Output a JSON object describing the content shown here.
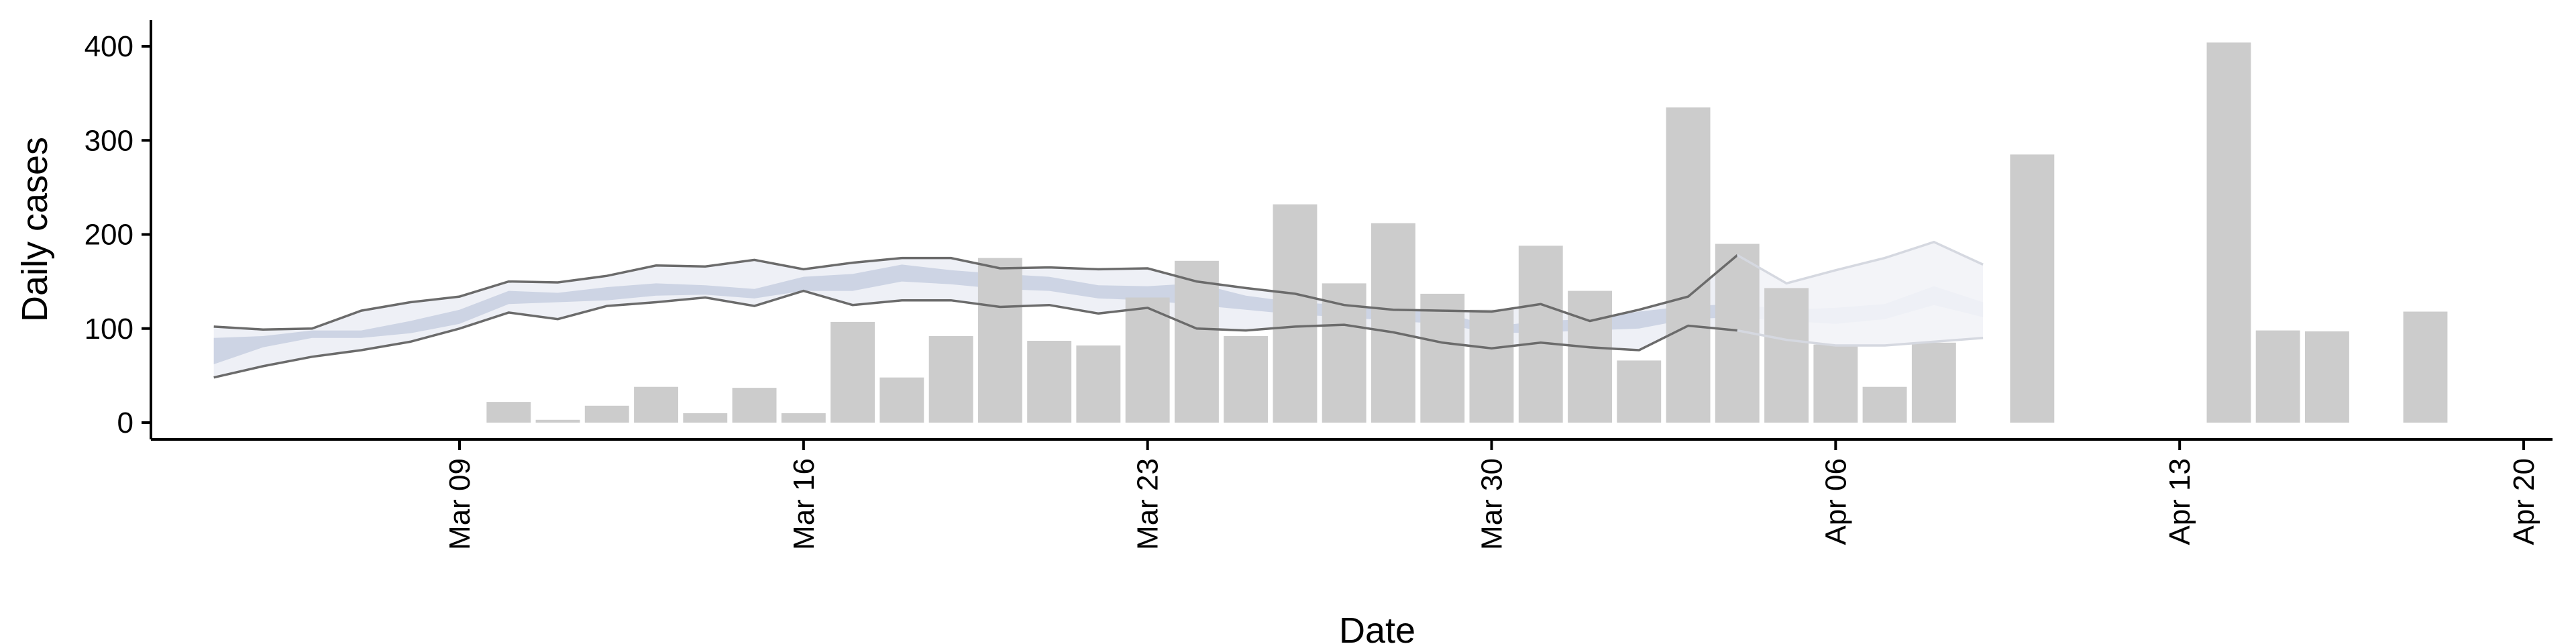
{
  "chart_data": {
    "type": "bar",
    "title": "",
    "xlabel": "Date",
    "ylabel": "Daily cases",
    "ylim": [
      0,
      420
    ],
    "xlim": [
      "2020-03-02",
      "2020-04-20"
    ],
    "y_ticks": [
      0,
      100,
      200,
      300,
      400
    ],
    "x_ticks": [
      {
        "date": "2020-03-09",
        "label": "Mar 09"
      },
      {
        "date": "2020-03-16",
        "label": "Mar 16"
      },
      {
        "date": "2020-03-23",
        "label": "Mar 23"
      },
      {
        "date": "2020-03-30",
        "label": "Mar 30"
      },
      {
        "date": "2020-04-06",
        "label": "Apr 06"
      },
      {
        "date": "2020-04-13",
        "label": "Apr 13"
      },
      {
        "date": "2020-04-20",
        "label": "Apr 20"
      }
    ],
    "grid": false,
    "colors": {
      "bars": "#cccccc",
      "band_outer": "#eef0f6",
      "band_inner": "#c7cfe1",
      "bounds_line": "#6b6b6b",
      "forecast_band": "#f3f4f8",
      "forecast_line": "#d5d8e0"
    },
    "bars": {
      "name": "Daily cases",
      "dates": [
        "2020-03-10",
        "2020-03-11",
        "2020-03-12",
        "2020-03-13",
        "2020-03-14",
        "2020-03-15",
        "2020-03-16",
        "2020-03-17",
        "2020-03-18",
        "2020-03-19",
        "2020-03-20",
        "2020-03-21",
        "2020-03-22",
        "2020-03-23",
        "2020-03-24",
        "2020-03-25",
        "2020-03-26",
        "2020-03-27",
        "2020-03-28",
        "2020-03-29",
        "2020-03-30",
        "2020-03-31",
        "2020-04-01",
        "2020-04-02",
        "2020-04-03",
        "2020-04-04",
        "2020-04-05",
        "2020-04-06",
        "2020-04-07",
        "2020-04-08",
        "2020-04-10",
        "2020-04-14",
        "2020-04-15",
        "2020-04-16",
        "2020-04-18"
      ],
      "values": [
        22,
        3,
        18,
        38,
        10,
        37,
        10,
        107,
        48,
        92,
        175,
        87,
        82,
        133,
        172,
        92,
        232,
        148,
        212,
        137,
        120,
        188,
        140,
        66,
        335,
        190,
        143,
        83,
        38,
        85,
        285,
        404,
        98,
        97,
        118
      ]
    },
    "model_band": {
      "dates": [
        "2020-03-04",
        "2020-03-05",
        "2020-03-06",
        "2020-03-07",
        "2020-03-08",
        "2020-03-09",
        "2020-03-10",
        "2020-03-11",
        "2020-03-12",
        "2020-03-13",
        "2020-03-14",
        "2020-03-15",
        "2020-03-16",
        "2020-03-17",
        "2020-03-18",
        "2020-03-19",
        "2020-03-20",
        "2020-03-21",
        "2020-03-22",
        "2020-03-23",
        "2020-03-24",
        "2020-03-25",
        "2020-03-26",
        "2020-03-27",
        "2020-03-28",
        "2020-03-29",
        "2020-03-30",
        "2020-03-31",
        "2020-04-01",
        "2020-04-02",
        "2020-04-03",
        "2020-04-04",
        "2020-04-05",
        "2020-04-06",
        "2020-04-07",
        "2020-04-08",
        "2020-04-09"
      ],
      "upper": [
        102,
        99,
        100,
        119,
        128,
        134,
        150,
        149,
        156,
        167,
        166,
        173,
        163,
        170,
        175,
        175,
        164,
        165,
        163,
        164,
        150,
        143,
        137,
        125,
        120,
        119,
        118,
        126,
        108,
        120,
        134,
        178,
        148,
        162,
        175,
        192,
        168
      ],
      "lower": [
        48,
        60,
        70,
        77,
        86,
        100,
        117,
        110,
        124,
        128,
        133,
        124,
        140,
        125,
        130,
        130,
        123,
        125,
        116,
        122,
        100,
        98,
        102,
        104,
        96,
        85,
        79,
        85,
        80,
        77,
        103,
        98,
        88,
        82,
        82,
        86,
        90
      ],
      "inner_upper": [
        90,
        92,
        98,
        98,
        108,
        120,
        140,
        138,
        144,
        148,
        146,
        142,
        155,
        158,
        168,
        162,
        158,
        155,
        146,
        145,
        148,
        135,
        128,
        125,
        120,
        118,
        102,
        108,
        110,
        118,
        124,
        126,
        120,
        122,
        126,
        145,
        128
      ],
      "inner_lower": [
        62,
        80,
        90,
        90,
        95,
        105,
        126,
        128,
        130,
        135,
        136,
        132,
        140,
        140,
        150,
        147,
        142,
        140,
        132,
        130,
        125,
        120,
        115,
        112,
        108,
        105,
        95,
        96,
        98,
        100,
        110,
        112,
        108,
        105,
        110,
        125,
        112
      ],
      "forecast_from": "2020-04-04"
    }
  }
}
